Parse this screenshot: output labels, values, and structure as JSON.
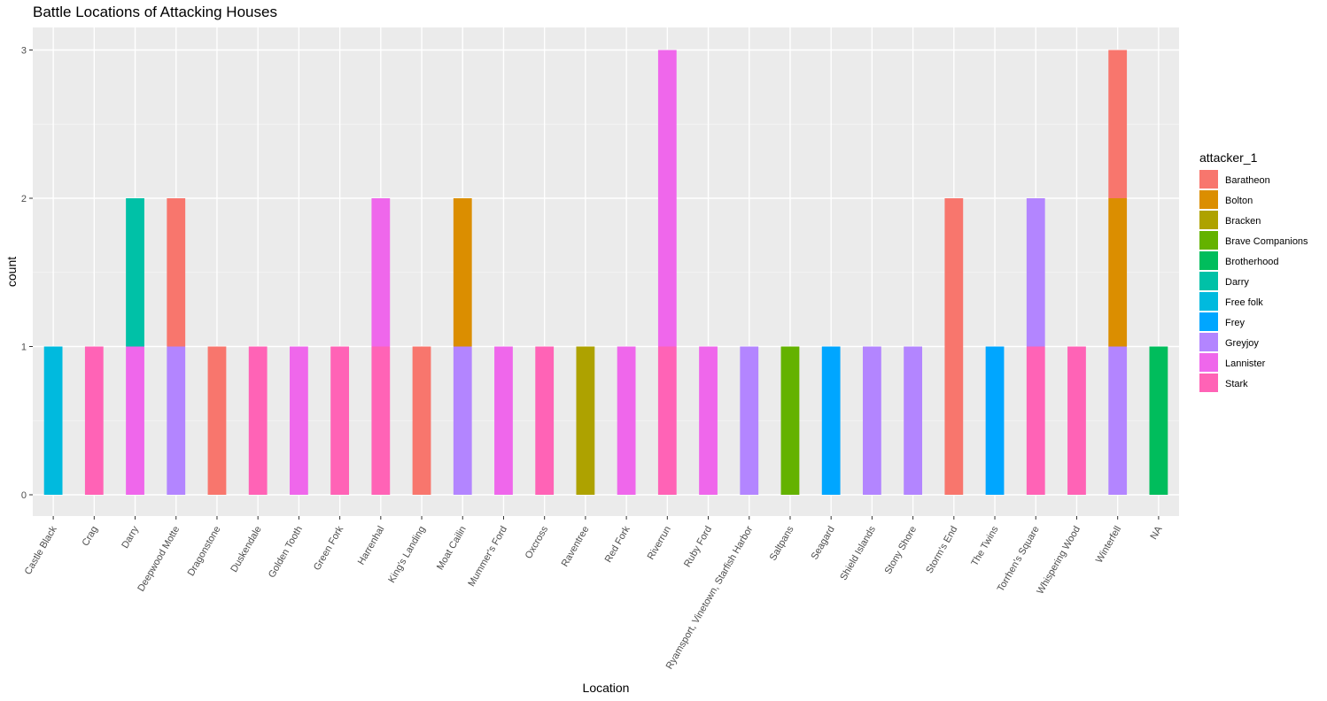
{
  "chart_data": {
    "type": "bar",
    "stacked": true,
    "title": "Battle Locations of Attacking Houses",
    "xlabel": "Location",
    "ylabel": "count",
    "ylim": [
      -0.15,
      3.15
    ],
    "yticks": [
      0,
      1,
      2,
      3
    ],
    "grid": true,
    "legend_title": "attacker_1",
    "legend_position": "right",
    "categories": [
      "Castle Black",
      "Crag",
      "Darry",
      "Deepwood Motte",
      "Dragonstone",
      "Duskendale",
      "Golden Tooth",
      "Green Fork",
      "Harrenhal",
      "King's Landing",
      "Moat Cailin",
      "Mummer's Ford",
      "Oxcross",
      "Raventree",
      "Red Fork",
      "Riverrun",
      "Ruby Ford",
      "Ryamsport, Vinetown, Starfish Harbor",
      "Saltpans",
      "Seagard",
      "Shield Islands",
      "Stony Shore",
      "Storm's End",
      "The Twins",
      "Torrhen's Square",
      "Whispering Wood",
      "Winterfell",
      "NA"
    ],
    "series": [
      {
        "name": "Baratheon",
        "color": "#F8766D",
        "values": [
          0,
          0,
          0,
          1,
          1,
          0,
          0,
          0,
          0,
          1,
          0,
          0,
          0,
          0,
          0,
          0,
          0,
          0,
          0,
          0,
          0,
          0,
          2,
          0,
          0,
          0,
          1,
          0
        ]
      },
      {
        "name": "Bolton",
        "color": "#DB8E00",
        "values": [
          0,
          0,
          0,
          0,
          0,
          0,
          0,
          0,
          0,
          0,
          1,
          0,
          0,
          0,
          0,
          0,
          0,
          0,
          0,
          0,
          0,
          0,
          0,
          0,
          0,
          0,
          1,
          0
        ]
      },
      {
        "name": "Bracken",
        "color": "#AEA200",
        "values": [
          0,
          0,
          0,
          0,
          0,
          0,
          0,
          0,
          0,
          0,
          0,
          0,
          0,
          1,
          0,
          0,
          0,
          0,
          0,
          0,
          0,
          0,
          0,
          0,
          0,
          0,
          0,
          0
        ]
      },
      {
        "name": "Brave Companions",
        "color": "#64B200",
        "values": [
          0,
          0,
          0,
          0,
          0,
          0,
          0,
          0,
          0,
          0,
          0,
          0,
          0,
          0,
          0,
          0,
          0,
          0,
          1,
          0,
          0,
          0,
          0,
          0,
          0,
          0,
          0,
          0
        ]
      },
      {
        "name": "Brotherhood",
        "color": "#00BD5C",
        "values": [
          0,
          0,
          0,
          0,
          0,
          0,
          0,
          0,
          0,
          0,
          0,
          0,
          0,
          0,
          0,
          0,
          0,
          0,
          0,
          0,
          0,
          0,
          0,
          0,
          0,
          0,
          0,
          1
        ]
      },
      {
        "name": "Darry",
        "color": "#00C1A7",
        "values": [
          0,
          0,
          1,
          0,
          0,
          0,
          0,
          0,
          0,
          0,
          0,
          0,
          0,
          0,
          0,
          0,
          0,
          0,
          0,
          0,
          0,
          0,
          0,
          0,
          0,
          0,
          0,
          0
        ]
      },
      {
        "name": "Free folk",
        "color": "#00BADE",
        "values": [
          1,
          0,
          0,
          0,
          0,
          0,
          0,
          0,
          0,
          0,
          0,
          0,
          0,
          0,
          0,
          0,
          0,
          0,
          0,
          0,
          0,
          0,
          0,
          0,
          0,
          0,
          0,
          0
        ]
      },
      {
        "name": "Frey",
        "color": "#00A6FF",
        "values": [
          0,
          0,
          0,
          0,
          0,
          0,
          0,
          0,
          0,
          0,
          0,
          0,
          0,
          0,
          0,
          0,
          0,
          0,
          0,
          1,
          0,
          0,
          0,
          1,
          0,
          0,
          0,
          0
        ]
      },
      {
        "name": "Greyjoy",
        "color": "#B385FF",
        "values": [
          0,
          0,
          0,
          1,
          0,
          0,
          0,
          0,
          0,
          0,
          1,
          0,
          0,
          0,
          0,
          0,
          0,
          1,
          0,
          0,
          1,
          1,
          0,
          0,
          1,
          0,
          1,
          0
        ]
      },
      {
        "name": "Lannister",
        "color": "#EF67EB",
        "values": [
          0,
          0,
          1,
          0,
          0,
          0,
          1,
          0,
          1,
          0,
          0,
          1,
          0,
          0,
          1,
          2,
          1,
          0,
          0,
          0,
          0,
          0,
          0,
          0,
          0,
          0,
          0,
          0
        ]
      },
      {
        "name": "Stark",
        "color": "#FF63B6",
        "values": [
          0,
          1,
          0,
          0,
          0,
          1,
          0,
          1,
          1,
          0,
          0,
          0,
          1,
          0,
          0,
          1,
          0,
          0,
          0,
          0,
          0,
          0,
          0,
          0,
          1,
          1,
          0,
          0
        ]
      }
    ]
  }
}
